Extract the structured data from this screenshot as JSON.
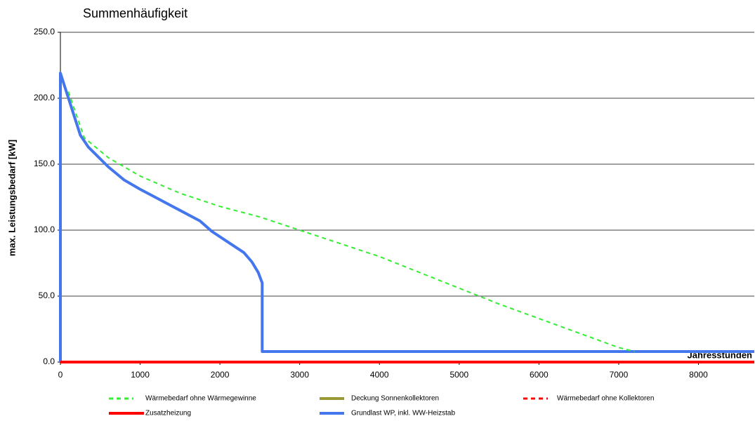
{
  "chart_data": {
    "type": "line",
    "title": "Summenhäufigkeit",
    "ylabel": "max. Leistungsbedarf [kW]",
    "xlabel": "Jahresstunden",
    "xlim": [
      0,
      8700
    ],
    "ylim": [
      0,
      250
    ],
    "xticks": [
      0,
      1000,
      2000,
      3000,
      4000,
      5000,
      6000,
      7000,
      8000
    ],
    "yticks": [
      {
        "value": 0,
        "label": "0.0"
      },
      {
        "value": 50,
        "label": "50.0"
      },
      {
        "value": 100,
        "label": "100.0"
      },
      {
        "value": 150,
        "label": "150.0"
      },
      {
        "value": 200,
        "label": "200.0"
      },
      {
        "value": 250,
        "label": "250.0"
      }
    ],
    "grid": true,
    "series": [
      {
        "name": "Wärmebedarf ohne Wärmegewinne",
        "color": "#33ee33",
        "dash": true,
        "x": [
          100,
          300,
          600,
          800,
          1000,
          1500,
          2000,
          2500,
          3000,
          3500,
          4000,
          4500,
          5000,
          5500,
          6000,
          6500,
          7000,
          7200
        ],
        "values": [
          205,
          170,
          155,
          148,
          141,
          128,
          118,
          110,
          100,
          90,
          80,
          68,
          56,
          44,
          33,
          22,
          11,
          8
        ]
      },
      {
        "name": "Deckung Sonnenkollektoren",
        "color": "#999933",
        "dash": false,
        "x": [],
        "values": []
      },
      {
        "name": "Wärmebedarf ohne Kollektoren",
        "color": "#ff0000",
        "dash": true,
        "x": [],
        "values": []
      },
      {
        "name": "Zusatzheizung",
        "color": "#ff0000",
        "dash": false,
        "x": [
          0,
          8700
        ],
        "values": [
          0,
          0
        ]
      },
      {
        "name": "Grundlast WP, inkl. WW-Heizstab",
        "color": "#4477ee",
        "dash": false,
        "x": [
          0,
          0,
          250,
          350,
          600,
          800,
          1000,
          1250,
          1750,
          1900,
          2100,
          2300,
          2400,
          2480,
          2530,
          2530,
          8700
        ],
        "values": [
          0,
          219,
          172,
          163,
          148,
          138,
          131,
          123,
          107,
          99,
          91,
          83,
          76,
          68,
          60,
          8,
          8
        ]
      }
    ]
  }
}
